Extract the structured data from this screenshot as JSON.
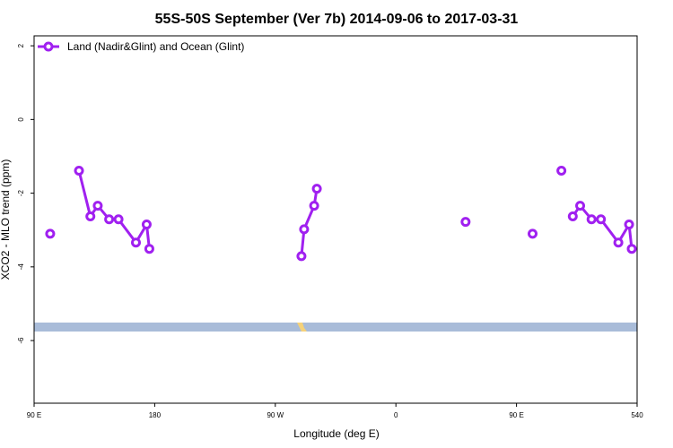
{
  "chart_data": {
    "type": "line",
    "title": "55S-50S September (Ver 7b)   2014-09-06 to 2017-03-31",
    "x_label": "Longitude (deg E)",
    "y_label": "XCO2 - MLO trend (ppm)",
    "xlim": [
      90,
      540
    ],
    "ylim": [
      -7.7,
      2.27
    ],
    "xticks": [
      {
        "value": 90,
        "label": "90 E"
      },
      180,
      {
        "value": 270,
        "label": "90 W"
      },
      {
        "value": 360,
        "label": "0"
      },
      {
        "value": 450,
        "label": "90 E"
      },
      540
    ],
    "yticks": [
      -6,
      -4,
      -2,
      0,
      2
    ],
    "legend": "top-left",
    "series": [
      {
        "name": "Land (Nadir&Glint) and Ocean (Glint)",
        "color": "#a020f0",
        "x": [
          102,
          null,
          123.5,
          132,
          137.5,
          146,
          153,
          166,
          174,
          176,
          null,
          289.5,
          291.5,
          299,
          301,
          null,
          412,
          null,
          462,
          null,
          483.5,
          null,
          492,
          497.5,
          506,
          513,
          526,
          534,
          536
        ],
        "values": [
          -3.1,
          null,
          -1.39,
          -2.63,
          -2.34,
          -2.71,
          -2.71,
          -3.34,
          -2.85,
          -3.51,
          null,
          -3.71,
          -2.98,
          -2.34,
          -1.88,
          null,
          -2.78,
          null,
          -3.1,
          null,
          -1.39,
          null,
          -2.63,
          -2.34,
          -2.71,
          -2.71,
          -3.34,
          -2.85,
          -3.51
        ]
      }
    ]
  }
}
